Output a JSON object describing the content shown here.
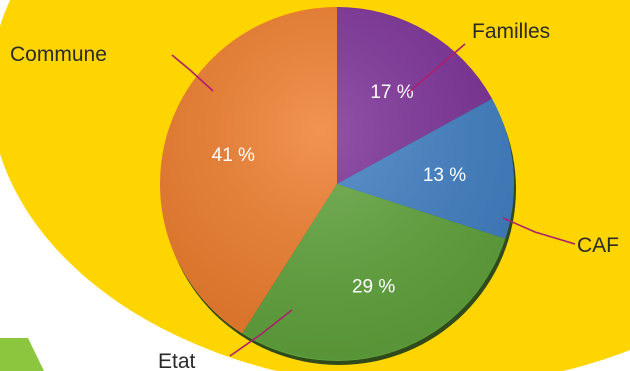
{
  "chart_data": {
    "type": "pie",
    "start_angle_deg": 0,
    "direction": "clockwise",
    "slices": [
      {
        "name": "Familles",
        "value": 17,
        "label": "17 %",
        "color": "#7b2f97"
      },
      {
        "name": "CAF",
        "value": 13,
        "label": "13 %",
        "color": "#3f7fc4"
      },
      {
        "name": "Etat",
        "value": 29,
        "label": "29 %",
        "color": "#5fa33a"
      },
      {
        "name": "Commune",
        "value": 41,
        "label": "41 %",
        "color": "#ef7c2a"
      }
    ]
  },
  "colors": {
    "background_disc": "#ffd500",
    "corner_accent": "#8cc63f",
    "pie_shadow": "#2f4b1b",
    "leader_line": "#ad1f6e"
  }
}
